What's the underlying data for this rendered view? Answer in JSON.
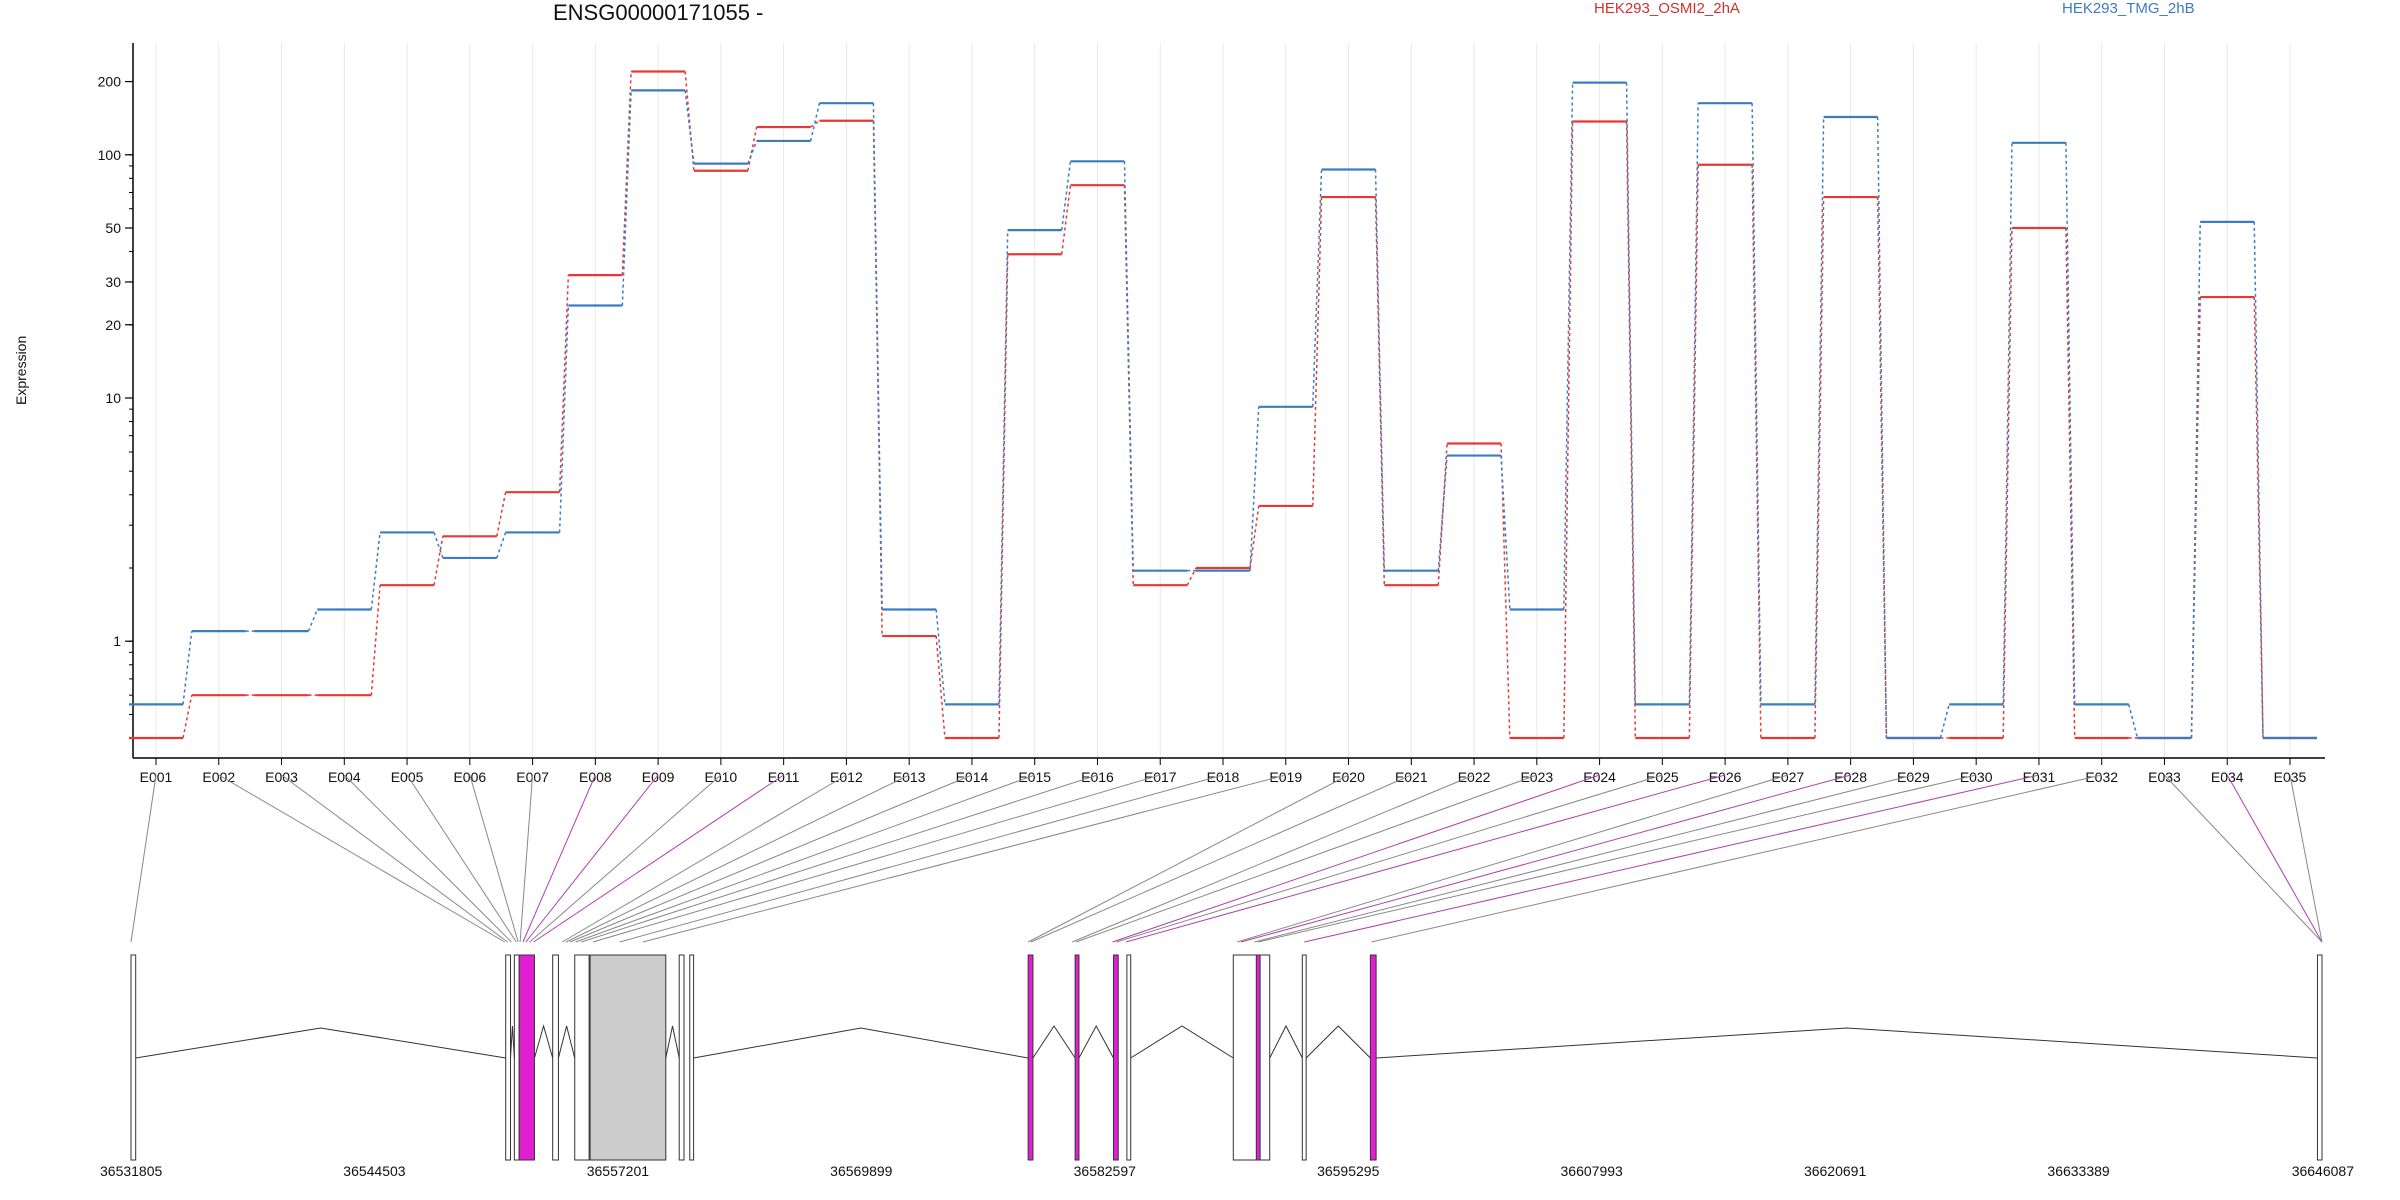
{
  "chart_data": {
    "type": "line",
    "title": "ENSG00000171055 -",
    "ylabel": "Expression",
    "y_scale": "log",
    "ylim": [
      0.4,
      250
    ],
    "y_ticks": [
      1,
      10,
      20,
      30,
      50,
      100,
      200
    ],
    "grid": "vertical",
    "legend_placement": "top-right",
    "categories": [
      "E001",
      "E002",
      "E003",
      "E004",
      "E005",
      "E006",
      "E007",
      "E008",
      "E009",
      "E010",
      "E011",
      "E012",
      "E013",
      "E014",
      "E015",
      "E016",
      "E017",
      "E018",
      "E019",
      "E020",
      "E021",
      "E022",
      "E023",
      "E024",
      "E025",
      "E026",
      "E027",
      "E028",
      "E029",
      "E030",
      "E031",
      "E032",
      "E033",
      "E034",
      "E035"
    ],
    "series": [
      {
        "name": "HEK293_OSMI2_2hA",
        "color": "#e53935",
        "values": [
          0.4,
          0.6,
          0.6,
          0.6,
          1.7,
          2.7,
          4.1,
          32,
          220,
          86,
          130,
          138,
          1.05,
          0.4,
          39,
          75,
          1.7,
          2.0,
          3.6,
          67,
          1.7,
          6.5,
          0.4,
          137,
          0.4,
          91,
          0.4,
          67,
          0.4,
          0.4,
          50,
          0.4,
          0.4,
          26,
          0.4
        ]
      },
      {
        "name": "HEK293_TMG_2hB",
        "color": "#3b7cc0",
        "values": [
          0.55,
          1.1,
          1.1,
          1.35,
          2.8,
          2.2,
          2.8,
          24,
          184,
          92,
          114,
          163,
          1.35,
          0.55,
          49,
          94,
          1.95,
          1.95,
          9.2,
          87,
          1.95,
          5.8,
          1.35,
          198,
          0.55,
          163,
          0.55,
          143,
          0.4,
          0.55,
          112,
          0.55,
          0.4,
          53,
          0.4
        ]
      }
    ],
    "genomic_axis": {
      "tick_labels": [
        "36531805",
        "36544503",
        "36557201",
        "36569899",
        "36582597",
        "36595295",
        "36607993",
        "36620691",
        "36633389",
        "36646087"
      ],
      "range": [
        36531805,
        36646087
      ],
      "tick_values": [
        36531805,
        36544503,
        36557201,
        36569899,
        36582597,
        36595295,
        36607993,
        36620691,
        36633389,
        36646087
      ]
    }
  }
}
